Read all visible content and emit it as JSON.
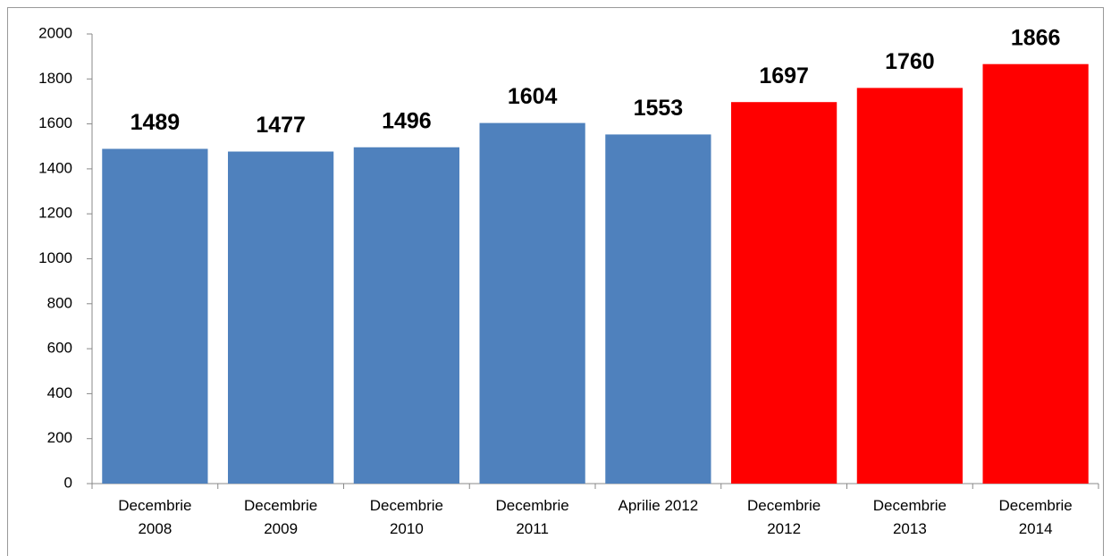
{
  "chart_data": {
    "type": "bar",
    "categories": [
      "Decembrie 2008",
      "Decembrie 2009",
      "Decembrie 2010",
      "Decembrie 2011",
      "Aprilie 2012",
      "Decembrie 2012",
      "Decembrie 2013",
      "Decembrie 2014"
    ],
    "values": [
      1489,
      1477,
      1496,
      1604,
      1553,
      1697,
      1760,
      1866
    ],
    "colors": [
      "#4f81bd",
      "#4f81bd",
      "#4f81bd",
      "#4f81bd",
      "#4f81bd",
      "#ff0000",
      "#ff0000",
      "#ff0000"
    ],
    "ylim": [
      0,
      2000
    ],
    "yticks": [
      0,
      200,
      400,
      600,
      800,
      1000,
      1200,
      1400,
      1600,
      1800,
      2000
    ],
    "grid": false
  }
}
